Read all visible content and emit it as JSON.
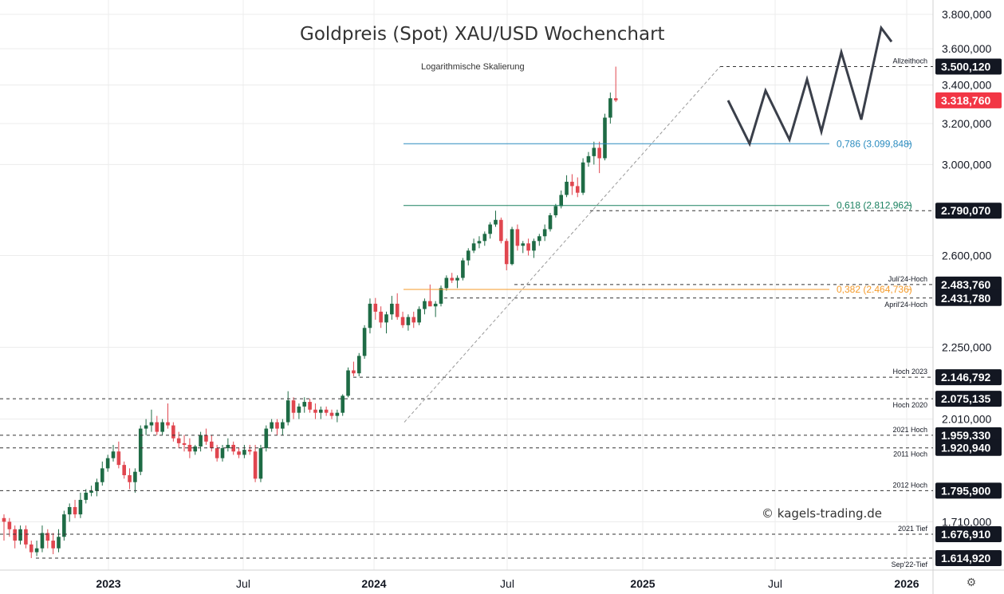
{
  "chart_data": {
    "type": "candlestick",
    "title": "Goldpreis (Spot) XAU/USD Wochenchart",
    "subtitle": "Logarithmische Skalierung",
    "watermark": "© kagels-trading.de",
    "log_scale": true,
    "grid": true,
    "x_ticks": [
      "2023",
      "Jul",
      "2024",
      "Jul",
      "2025",
      "Jul",
      "2026"
    ],
    "y_ticks": [
      "3.800,000",
      "3.600,000",
      "3.400,000",
      "3.200,000",
      "3.000,000",
      "2.600,000",
      "2.250,000",
      "2.010,000",
      "1.710,000"
    ],
    "y_tick_values": [
      3800,
      3600,
      3400,
      3200,
      3000,
      2600,
      2250,
      2010,
      1710
    ],
    "price_tags": [
      {
        "label": "3.500,120",
        "value": 3500.12,
        "color": "#131722"
      },
      {
        "label": "3.318,760",
        "value": 3318.76,
        "color": "#f23645"
      },
      {
        "label": "2.790,070",
        "value": 2790.07,
        "color": "#131722"
      },
      {
        "label": "2.483,760",
        "value": 2483.76,
        "color": "#131722"
      },
      {
        "label": "2.431,780",
        "value": 2431.78,
        "color": "#131722"
      },
      {
        "label": "2.146,792",
        "value": 2146.792,
        "color": "#131722"
      },
      {
        "label": "2.075,135",
        "value": 2075.135,
        "color": "#131722"
      },
      {
        "label": "1.959,330",
        "value": 1959.33,
        "color": "#131722"
      },
      {
        "label": "1.920,940",
        "value": 1920.94,
        "color": "#131722"
      },
      {
        "label": "1.795,900",
        "value": 1795.9,
        "color": "#131722"
      },
      {
        "label": "1.676,910",
        "value": 1676.91,
        "color": "#131722"
      },
      {
        "label": "1.614,920",
        "value": 1614.92,
        "color": "#131722"
      }
    ],
    "horizontal_levels": [
      {
        "label": "Allzeithoch",
        "value": 3500.12
      },
      {
        "label": "Juli'24-Hoch",
        "value": 2483.76
      },
      {
        "label": "April'24-Hoch",
        "value": 2431.78
      },
      {
        "label": "Hoch 2023",
        "value": 2146.792
      },
      {
        "label": "Hoch 2020",
        "value": 2075.135
      },
      {
        "label": "2021 Hoch",
        "value": 1959.33
      },
      {
        "label": "2011 Hoch",
        "value": 1920.94
      },
      {
        "label": "2012 Hoch",
        "value": 1795.9
      },
      {
        "label": "2021 Tief",
        "value": 1676.91
      },
      {
        "label": "Sep'22-Tief",
        "value": 1614.92
      }
    ],
    "fibonacci": [
      {
        "label": "0,786 (3.099,848)",
        "value": 3099.848,
        "color": "#2a8bbf"
      },
      {
        "label": "0,618 (2.812,962)",
        "value": 2812.962,
        "color": "#1a8060"
      },
      {
        "label": "0,382 (2.464,736)",
        "value": 2464.736,
        "color": "#f59b2a"
      }
    ],
    "colors": {
      "up": "#1e6b45",
      "down": "#e0464f",
      "grid": "#ececec",
      "dashed": "#333333"
    },
    "candles": [
      [
        1720,
        1730,
        1660,
        1710
      ],
      [
        1710,
        1720,
        1670,
        1690
      ],
      [
        1690,
        1700,
        1640,
        1660
      ],
      [
        1660,
        1700,
        1650,
        1690
      ],
      [
        1690,
        1700,
        1640,
        1650
      ],
      [
        1650,
        1660,
        1615,
        1630
      ],
      [
        1630,
        1660,
        1620,
        1640
      ],
      [
        1640,
        1700,
        1630,
        1680
      ],
      [
        1680,
        1690,
        1640,
        1660
      ],
      [
        1660,
        1680,
        1625,
        1640
      ],
      [
        1640,
        1690,
        1630,
        1670
      ],
      [
        1670,
        1740,
        1660,
        1730
      ],
      [
        1730,
        1760,
        1710,
        1750
      ],
      [
        1750,
        1770,
        1720,
        1730
      ],
      [
        1730,
        1790,
        1720,
        1770
      ],
      [
        1770,
        1800,
        1760,
        1790
      ],
      [
        1790,
        1810,
        1780,
        1795
      ],
      [
        1795,
        1830,
        1780,
        1820
      ],
      [
        1820,
        1880,
        1810,
        1860
      ],
      [
        1860,
        1900,
        1850,
        1890
      ],
      [
        1890,
        1930,
        1880,
        1910
      ],
      [
        1910,
        1940,
        1860,
        1870
      ],
      [
        1870,
        1880,
        1830,
        1840
      ],
      [
        1840,
        1860,
        1800,
        1820
      ],
      [
        1820,
        1860,
        1790,
        1850
      ],
      [
        1850,
        1990,
        1840,
        1980
      ],
      [
        1980,
        2010,
        1960,
        1990
      ],
      [
        1990,
        2040,
        1970,
        2000
      ],
      [
        2000,
        2020,
        1960,
        1970
      ],
      [
        1970,
        2010,
        1960,
        2000
      ],
      [
        2000,
        2060,
        1980,
        1990
      ],
      [
        1990,
        2000,
        1940,
        1950
      ],
      [
        1950,
        1970,
        1920,
        1935
      ],
      [
        1935,
        1960,
        1910,
        1930
      ],
      [
        1930,
        1950,
        1890,
        1910
      ],
      [
        1910,
        1930,
        1900,
        1925
      ],
      [
        1925,
        1970,
        1910,
        1960
      ],
      [
        1960,
        1980,
        1930,
        1940
      ],
      [
        1940,
        1960,
        1910,
        1920
      ],
      [
        1920,
        1930,
        1880,
        1890
      ],
      [
        1890,
        1930,
        1880,
        1920
      ],
      [
        1920,
        1950,
        1910,
        1930
      ],
      [
        1930,
        1940,
        1900,
        1910
      ],
      [
        1910,
        1920,
        1890,
        1900
      ],
      [
        1900,
        1930,
        1890,
        1915
      ],
      [
        1915,
        1930,
        1900,
        1910
      ],
      [
        1910,
        1930,
        1820,
        1830
      ],
      [
        1830,
        1930,
        1820,
        1920
      ],
      [
        1920,
        1990,
        1910,
        1980
      ],
      [
        1980,
        2010,
        1970,
        2000
      ],
      [
        2000,
        2010,
        1960,
        1980
      ],
      [
        1980,
        2010,
        1960,
        2000
      ],
      [
        2000,
        2100,
        1990,
        2070
      ],
      [
        2070,
        2080,
        2010,
        2030
      ],
      [
        2030,
        2060,
        2010,
        2050
      ],
      [
        2050,
        2080,
        2030,
        2065
      ],
      [
        2065,
        2075,
        2030,
        2040
      ],
      [
        2040,
        2060,
        2010,
        2030
      ],
      [
        2030,
        2050,
        2010,
        2040
      ],
      [
        2040,
        2050,
        2020,
        2030
      ],
      [
        2030,
        2040,
        2010,
        2020
      ],
      [
        2020,
        2040,
        2000,
        2030
      ],
      [
        2030,
        2090,
        2020,
        2085
      ],
      [
        2085,
        2180,
        2080,
        2170
      ],
      [
        2170,
        2200,
        2150,
        2160
      ],
      [
        2160,
        2230,
        2150,
        2220
      ],
      [
        2220,
        2330,
        2210,
        2320
      ],
      [
        2320,
        2430,
        2300,
        2410
      ],
      [
        2410,
        2432,
        2350,
        2380
      ],
      [
        2380,
        2400,
        2320,
        2340
      ],
      [
        2340,
        2380,
        2300,
        2370
      ],
      [
        2370,
        2440,
        2350,
        2410
      ],
      [
        2410,
        2450,
        2350,
        2360
      ],
      [
        2360,
        2380,
        2320,
        2330
      ],
      [
        2330,
        2370,
        2310,
        2360
      ],
      [
        2360,
        2380,
        2320,
        2340
      ],
      [
        2340,
        2400,
        2330,
        2390
      ],
      [
        2390,
        2430,
        2370,
        2420
      ],
      [
        2420,
        2484,
        2400,
        2400
      ],
      [
        2400,
        2420,
        2360,
        2410
      ],
      [
        2410,
        2480,
        2400,
        2470
      ],
      [
        2470,
        2520,
        2460,
        2510
      ],
      [
        2510,
        2530,
        2490,
        2500
      ],
      [
        2500,
        2520,
        2470,
        2510
      ],
      [
        2510,
        2590,
        2500,
        2580
      ],
      [
        2580,
        2630,
        2560,
        2620
      ],
      [
        2620,
        2670,
        2610,
        2650
      ],
      [
        2650,
        2680,
        2630,
        2660
      ],
      [
        2660,
        2700,
        2640,
        2690
      ],
      [
        2690,
        2740,
        2670,
        2730
      ],
      [
        2730,
        2790,
        2720,
        2750
      ],
      [
        2750,
        2760,
        2650,
        2660
      ],
      [
        2660,
        2670,
        2540,
        2565
      ],
      [
        2565,
        2720,
        2560,
        2710
      ],
      [
        2710,
        2730,
        2620,
        2640
      ],
      [
        2640,
        2660,
        2610,
        2650
      ],
      [
        2650,
        2670,
        2600,
        2620
      ],
      [
        2620,
        2670,
        2590,
        2660
      ],
      [
        2660,
        2690,
        2640,
        2680
      ],
      [
        2680,
        2730,
        2660,
        2710
      ],
      [
        2710,
        2780,
        2700,
        2770
      ],
      [
        2770,
        2820,
        2760,
        2810
      ],
      [
        2810,
        2880,
        2800,
        2860
      ],
      [
        2860,
        2950,
        2850,
        2920
      ],
      [
        2920,
        2955,
        2860,
        2900
      ],
      [
        2900,
        2940,
        2850,
        2870
      ],
      [
        2870,
        3030,
        2860,
        3010
      ],
      [
        3010,
        3060,
        2990,
        3040
      ],
      [
        3040,
        3110,
        3000,
        3080
      ],
      [
        3080,
        3110,
        2960,
        3030
      ],
      [
        3030,
        3250,
        3020,
        3230
      ],
      [
        3230,
        3360,
        3200,
        3330
      ],
      [
        3330,
        3500,
        3310,
        3319
      ]
    ],
    "projection": [
      3319,
      3100,
      3370,
      3120,
      3430,
      3160,
      3580,
      3220,
      3720,
      3640
    ]
  }
}
